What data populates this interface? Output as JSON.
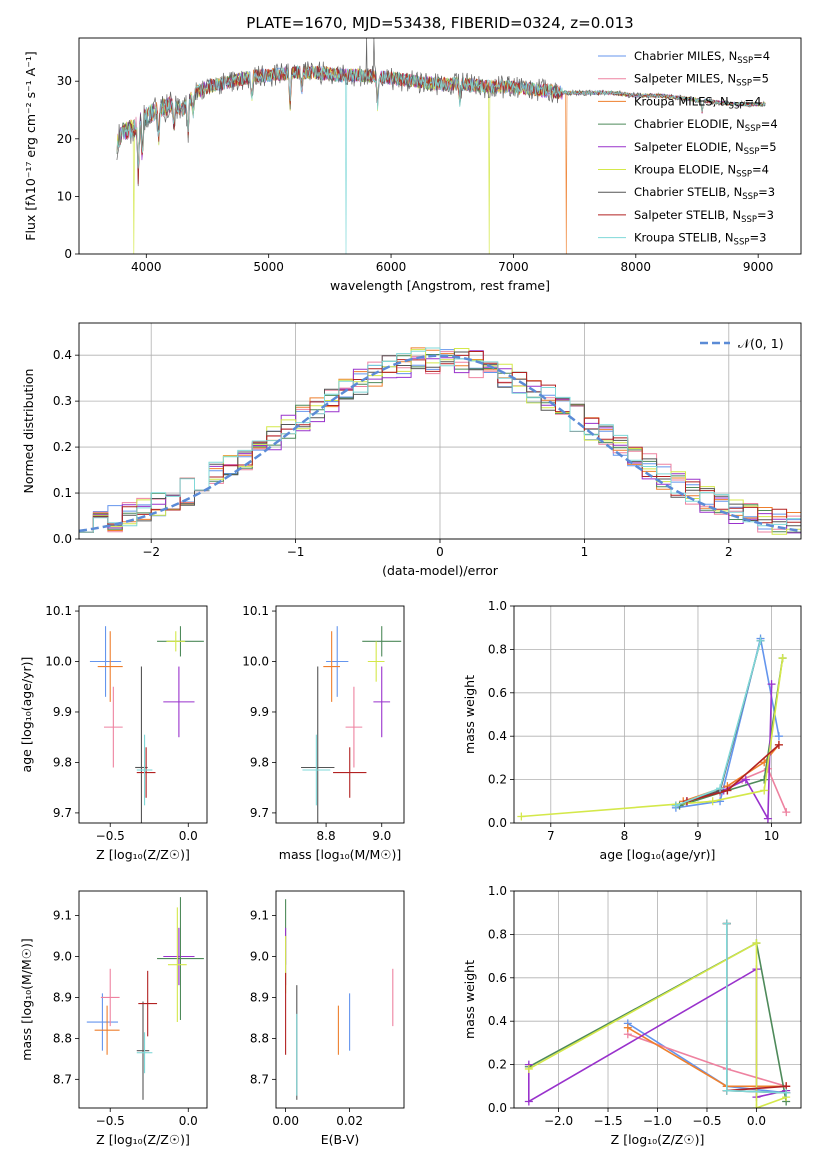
{
  "figure_title": "PLATE=1670, MJD=53438, FIBERID=0324, z=0.013",
  "colors": {
    "Chabrier MILES": "#6495ed",
    "Salpeter MILES": "#ee82a0",
    "Kroupa MILES": "#ee7f2d",
    "Chabrier ELODIE": "#4e8a5a",
    "Salpeter ELODIE": "#9932cc",
    "Kroupa ELODIE": "#d4e84a",
    "Chabrier STELIB": "#555555",
    "Salpeter STELIB": "#b22222",
    "Kroupa STELIB": "#7fd8d8",
    "gaussian": "#5b8bd6"
  },
  "chart_data": [
    {
      "id": "spectrum",
      "type": "line",
      "xlabel": "wavelength [Angstrom, rest frame]",
      "ylabel": "Flux [fλ10⁻¹⁷ erg cm⁻² s⁻¹ A⁻¹]",
      "xlim": [
        3450,
        9350
      ],
      "ylim": [
        0,
        37.5
      ],
      "xticks": [
        "4000",
        "5000",
        "6000",
        "7000",
        "8000",
        "9000"
      ],
      "yticks": [
        "0",
        "10",
        "20",
        "30"
      ],
      "legend_position": "top-right",
      "legend": [
        {
          "name": "Chabrier MILES",
          "label": "Chabrier MILES, N",
          "sub": "SSP",
          "tail": "=4"
        },
        {
          "name": "Salpeter MILES",
          "label": "Salpeter MILES, N",
          "sub": "SSP",
          "tail": "=5"
        },
        {
          "name": "Kroupa MILES",
          "label": "Kroupa MILES, N",
          "sub": "SSP",
          "tail": "=4"
        },
        {
          "name": "Chabrier ELODIE",
          "label": "Chabrier ELODIE, N",
          "sub": "SSP",
          "tail": "=4"
        },
        {
          "name": "Salpeter ELODIE",
          "label": "Salpeter ELODIE, N",
          "sub": "SSP",
          "tail": "=5"
        },
        {
          "name": "Kroupa ELODIE",
          "label": "Kroupa ELODIE, N",
          "sub": "SSP",
          "tail": "=4"
        },
        {
          "name": "Chabrier STELIB",
          "label": "Chabrier STELIB, N",
          "sub": "SSP",
          "tail": "=3"
        },
        {
          "name": "Salpeter STELIB",
          "label": "Salpeter STELIB, N",
          "sub": "SSP",
          "tail": "=3"
        },
        {
          "name": "Kroupa STELIB",
          "label": "Kroupa STELIB, N",
          "sub": "SSP",
          "tail": "=3"
        }
      ],
      "continuum": {
        "x": [
          3760,
          3800,
          3900,
          3950,
          4000,
          4100,
          4200,
          4300,
          4400,
          4500,
          4700,
          4900,
          5000,
          5200,
          5400,
          5600,
          5800,
          6000,
          6200,
          6400,
          6600,
          6800,
          7000,
          7200,
          7400,
          7600,
          7800,
          8000,
          8200,
          8400,
          8600,
          8800,
          9000,
          9060
        ],
        "y": [
          19,
          21,
          22,
          23,
          24,
          25,
          26,
          25,
          28,
          29,
          30,
          31,
          31,
          31.5,
          31.5,
          31,
          31,
          30.5,
          30,
          29.5,
          29.5,
          29,
          29,
          28.5,
          28,
          28,
          28,
          27.5,
          27.5,
          27,
          26.5,
          26,
          26,
          26
        ]
      },
      "dropouts": [
        {
          "model": "Kroupa ELODIE",
          "x": 3900
        },
        {
          "model": "Kroupa STELIB",
          "x": 5630
        },
        {
          "model": "Kroupa ELODIE",
          "x": 6800
        },
        {
          "model": "Kroupa MILES",
          "x": 7430
        }
      ]
    },
    {
      "id": "residuals",
      "type": "histogram",
      "xlabel": "(data-model)/error",
      "ylabel": "Normed distribution",
      "xlim": [
        -2.5,
        2.5
      ],
      "ylim": [
        0,
        0.47
      ],
      "xticks": [
        "−2",
        "−1",
        "0",
        "1",
        "2"
      ],
      "yticks": [
        "0.0",
        "0.1",
        "0.2",
        "0.3",
        "0.4"
      ],
      "grid": true,
      "legend": {
        "label": "𝒩(0, 1)",
        "position": "top-right"
      },
      "bin_width": 0.1
    },
    {
      "id": "z-age",
      "type": "errorbar",
      "xlabel": "Z [log₁₀(Z/Z☉)]",
      "ylabel": "age  [log₁₀(age/yr)]",
      "xlim": [
        -0.7,
        0.12
      ],
      "ylim": [
        9.68,
        10.11
      ],
      "xticks": [
        {
          "v": -0.5,
          "t": "−0.5"
        },
        {
          "v": 0.0,
          "t": "0.0"
        }
      ],
      "yticks": [
        {
          "v": 9.7,
          "t": "9.7"
        },
        {
          "v": 9.8,
          "t": "9.8"
        },
        {
          "v": 9.9,
          "t": "9.9"
        },
        {
          "v": 10.0,
          "t": "10.0"
        },
        {
          "v": 10.1,
          "t": "10.1"
        }
      ],
      "points": [
        {
          "model": "Chabrier MILES",
          "x": -0.53,
          "xerr": 0.1,
          "y": 10.0,
          "yerr": 0.07
        },
        {
          "model": "Kroupa MILES",
          "x": -0.5,
          "xerr": 0.08,
          "y": 9.99,
          "yerr": 0.07
        },
        {
          "model": "Salpeter MILES",
          "x": -0.48,
          "xerr": 0.06,
          "y": 9.87,
          "yerr": 0.08
        },
        {
          "model": "Chabrier STELIB",
          "x": -0.3,
          "xerr": 0.04,
          "y": 9.79,
          "yerr": 0.2
        },
        {
          "model": "Salpeter STELIB",
          "x": -0.27,
          "xerr": 0.06,
          "y": 9.78,
          "yerr": 0.05
        },
        {
          "model": "Kroupa STELIB",
          "x": -0.28,
          "xerr": 0.05,
          "y": 9.785,
          "yerr": 0.07
        },
        {
          "model": "Salpeter ELODIE",
          "x": -0.06,
          "xerr": 0.1,
          "y": 9.92,
          "yerr": 0.07
        },
        {
          "model": "Chabrier ELODIE",
          "x": -0.05,
          "xerr": 0.15,
          "y": 10.04,
          "yerr": 0.03
        },
        {
          "model": "Kroupa ELODIE",
          "x": -0.08,
          "xerr": 0.06,
          "y": 10.04,
          "yerr": 0.02
        }
      ]
    },
    {
      "id": "mass-age",
      "type": "errorbar",
      "xlabel": "mass [log₁₀(M/M☉)]",
      "ylabel": "",
      "xlim": [
        8.62,
        9.08
      ],
      "ylim": [
        9.68,
        10.11
      ],
      "xticks": [
        {
          "v": 8.8,
          "t": "8.8"
        },
        {
          "v": 9.0,
          "t": "9.0"
        }
      ],
      "yticks": [
        {
          "v": 9.7,
          "t": "9.7"
        },
        {
          "v": 9.8,
          "t": "9.8"
        },
        {
          "v": 9.9,
          "t": "9.9"
        },
        {
          "v": 10.0,
          "t": "10.0"
        },
        {
          "v": 10.1,
          "t": "10.1"
        }
      ],
      "points": [
        {
          "model": "Chabrier MILES",
          "x": 8.84,
          "xerr": 0.04,
          "y": 10.0,
          "yerr": 0.07
        },
        {
          "model": "Kroupa MILES",
          "x": 8.82,
          "xerr": 0.03,
          "y": 9.99,
          "yerr": 0.07
        },
        {
          "model": "Salpeter MILES",
          "x": 8.9,
          "xerr": 0.03,
          "y": 9.87,
          "yerr": 0.08
        },
        {
          "model": "Chabrier STELIB",
          "x": 8.77,
          "xerr": 0.06,
          "y": 9.79,
          "yerr": 0.2
        },
        {
          "model": "Salpeter STELIB",
          "x": 8.885,
          "xerr": 0.06,
          "y": 9.78,
          "yerr": 0.05
        },
        {
          "model": "Kroupa STELIB",
          "x": 8.765,
          "xerr": 0.05,
          "y": 9.785,
          "yerr": 0.07
        },
        {
          "model": "Salpeter ELODIE",
          "x": 9.0,
          "xerr": 0.03,
          "y": 9.92,
          "yerr": 0.07
        },
        {
          "model": "Chabrier ELODIE",
          "x": 9.0,
          "xerr": 0.07,
          "y": 10.04,
          "yerr": 0.03
        },
        {
          "model": "Kroupa ELODIE",
          "x": 8.98,
          "xerr": 0.03,
          "y": 10.0,
          "yerr": 0.04
        }
      ]
    },
    {
      "id": "age-weight",
      "type": "line",
      "xlabel": "age  [log₁₀(age/yr)]",
      "ylabel": "mass weight",
      "xlim": [
        6.5,
        10.4
      ],
      "ylim": [
        0,
        1.0
      ],
      "xticks": [
        {
          "v": 7,
          "t": "7"
        },
        {
          "v": 8,
          "t": "8"
        },
        {
          "v": 9,
          "t": "9"
        },
        {
          "v": 10,
          "t": "10"
        }
      ],
      "yticks": [
        {
          "v": 0,
          "t": "0.0"
        },
        {
          "v": 0.2,
          "t": "0.2"
        },
        {
          "v": 0.4,
          "t": "0.4"
        },
        {
          "v": 0.6,
          "t": "0.6"
        },
        {
          "v": 0.8,
          "t": "0.8"
        },
        {
          "v": 1.0,
          "t": "1.0"
        }
      ],
      "grid": true,
      "series": [
        {
          "model": "Chabrier MILES",
          "x": [
            8.7,
            9.3,
            9.85,
            10.1
          ],
          "y": [
            0.07,
            0.1,
            0.85,
            0.4
          ]
        },
        {
          "model": "Salpeter MILES",
          "x": [
            8.85,
            9.3,
            9.6,
            9.95,
            10.2
          ],
          "y": [
            0.1,
            0.14,
            0.2,
            0.25,
            0.05
          ]
        },
        {
          "model": "Kroupa MILES",
          "x": [
            8.8,
            9.4,
            9.9,
            10.1
          ],
          "y": [
            0.1,
            0.17,
            0.28,
            0.36
          ]
        },
        {
          "model": "Chabrier ELODIE",
          "x": [
            8.75,
            9.4,
            9.9,
            10.15
          ],
          "y": [
            0.08,
            0.15,
            0.2,
            0.76
          ]
        },
        {
          "model": "Salpeter ELODIE",
          "x": [
            8.85,
            9.35,
            9.65,
            9.95,
            10.0
          ],
          "y": [
            0.1,
            0.15,
            0.2,
            0.02,
            0.64
          ]
        },
        {
          "model": "Kroupa ELODIE",
          "x": [
            6.6,
            9.2,
            9.9,
            10.15
          ],
          "y": [
            0.03,
            0.1,
            0.15,
            0.76
          ]
        },
        {
          "model": "Chabrier STELIB",
          "x": [
            8.7,
            9.3,
            9.85
          ],
          "y": [
            0.08,
            0.15,
            0.84
          ]
        },
        {
          "model": "Salpeter STELIB",
          "x": [
            8.85,
            9.4,
            10.1
          ],
          "y": [
            0.1,
            0.15,
            0.36
          ]
        },
        {
          "model": "Kroupa STELIB",
          "x": [
            8.7,
            9.3,
            9.85
          ],
          "y": [
            0.08,
            0.16,
            0.84
          ]
        }
      ]
    },
    {
      "id": "z-mass",
      "type": "errorbar",
      "xlabel": "Z [log₁₀(Z/Z☉)]",
      "ylabel": "mass [log₁₀(M/M☉)]",
      "xlim": [
        -0.7,
        0.12
      ],
      "ylim": [
        8.63,
        9.16
      ],
      "xticks": [
        {
          "v": -0.5,
          "t": "−0.5"
        },
        {
          "v": 0.0,
          "t": "0.0"
        }
      ],
      "yticks": [
        {
          "v": 8.7,
          "t": "8.7"
        },
        {
          "v": 8.8,
          "t": "8.8"
        },
        {
          "v": 8.9,
          "t": "8.9"
        },
        {
          "v": 9.0,
          "t": "9.0"
        },
        {
          "v": 9.1,
          "t": "9.1"
        }
      ],
      "points": [
        {
          "model": "Chabrier MILES",
          "x": -0.55,
          "xerr": 0.1,
          "y": 8.84,
          "yerr": 0.07
        },
        {
          "model": "Kroupa MILES",
          "x": -0.52,
          "xerr": 0.08,
          "y": 8.82,
          "yerr": 0.06
        },
        {
          "model": "Salpeter MILES",
          "x": -0.5,
          "xerr": 0.06,
          "y": 8.9,
          "yerr": 0.07
        },
        {
          "model": "Chabrier STELIB",
          "x": -0.29,
          "xerr": 0.04,
          "y": 8.77,
          "yerr": 0.12
        },
        {
          "model": "Salpeter STELIB",
          "x": -0.26,
          "xerr": 0.06,
          "y": 8.885,
          "yerr": 0.08
        },
        {
          "model": "Kroupa STELIB",
          "x": -0.28,
          "xerr": 0.05,
          "y": 8.765,
          "yerr": 0.05
        },
        {
          "model": "Salpeter ELODIE",
          "x": -0.06,
          "xerr": 0.1,
          "y": 9.0,
          "yerr": 0.07
        },
        {
          "model": "Chabrier ELODIE",
          "x": -0.05,
          "xerr": 0.15,
          "y": 8.995,
          "yerr": 0.15
        },
        {
          "model": "Kroupa ELODIE",
          "x": -0.07,
          "xerr": 0.06,
          "y": 8.98,
          "yerr": 0.14
        }
      ]
    },
    {
      "id": "ebv-mass",
      "type": "errorbar",
      "xlabel": "E(B-V)",
      "ylabel": "",
      "xlim": [
        -0.003,
        0.037
      ],
      "ylim": [
        8.63,
        9.16
      ],
      "xticks": [
        {
          "v": 0.0,
          "t": "0.00"
        },
        {
          "v": 0.02,
          "t": "0.02"
        }
      ],
      "yticks": [
        {
          "v": 8.7,
          "t": "8.7"
        },
        {
          "v": 8.8,
          "t": "8.8"
        },
        {
          "v": 8.9,
          "t": "8.9"
        },
        {
          "v": 9.0,
          "t": "9.0"
        },
        {
          "v": 9.1,
          "t": "9.1"
        }
      ],
      "points": [
        {
          "model": "Chabrier ELODIE",
          "x": 0.0,
          "xerr": 0,
          "y": 9.06,
          "yerr": 0.08
        },
        {
          "model": "Salpeter ELODIE",
          "x": 0.0,
          "xerr": 0,
          "y": 9.0,
          "yerr": 0.07
        },
        {
          "model": "Kroupa ELODIE",
          "x": 0.0,
          "xerr": 0,
          "y": 8.98,
          "yerr": 0.07
        },
        {
          "model": "Salpeter STELIB",
          "x": 0.0,
          "xerr": 0,
          "y": 8.86,
          "yerr": 0.1
        },
        {
          "model": "Chabrier STELIB",
          "x": 0.0035,
          "xerr": 0,
          "y": 8.79,
          "yerr": 0.14
        },
        {
          "model": "Kroupa STELIB",
          "x": 0.0035,
          "xerr": 0,
          "y": 8.76,
          "yerr": 0.1
        },
        {
          "model": "Kroupa MILES",
          "x": 0.0165,
          "xerr": 0,
          "y": 8.82,
          "yerr": 0.06
        },
        {
          "model": "Chabrier MILES",
          "x": 0.02,
          "xerr": 0,
          "y": 8.84,
          "yerr": 0.07
        },
        {
          "model": "Salpeter MILES",
          "x": 0.0335,
          "xerr": 0,
          "y": 8.9,
          "yerr": 0.07
        }
      ]
    },
    {
      "id": "z-weight",
      "type": "line",
      "xlabel": "Z [log₁₀(Z/Z☉)]",
      "ylabel": "mass weight",
      "xlim": [
        -2.45,
        0.45
      ],
      "ylim": [
        0,
        1.0
      ],
      "xticks": [
        {
          "v": -2.0,
          "t": "−2.0"
        },
        {
          "v": -1.5,
          "t": "−1.5"
        },
        {
          "v": -1.0,
          "t": "−1.0"
        },
        {
          "v": -0.5,
          "t": "−0.5"
        },
        {
          "v": 0.0,
          "t": "0.0"
        }
      ],
      "yticks": [
        {
          "v": 0,
          "t": "0.0"
        },
        {
          "v": 0.2,
          "t": "0.2"
        },
        {
          "v": 0.4,
          "t": "0.4"
        },
        {
          "v": 0.6,
          "t": "0.6"
        },
        {
          "v": 0.8,
          "t": "0.8"
        },
        {
          "v": 1.0,
          "t": "1.0"
        }
      ],
      "grid": true,
      "series": [
        {
          "model": "Chabrier MILES",
          "x": [
            -1.3,
            -0.3,
            0.3
          ],
          "y": [
            0.39,
            0.1,
            0.07
          ]
        },
        {
          "model": "Salpeter MILES",
          "x": [
            -1.3,
            -0.3,
            0.3
          ],
          "y": [
            0.34,
            0.18,
            0.1
          ]
        },
        {
          "model": "Kroupa MILES",
          "x": [
            -1.3,
            -0.3,
            0.3
          ],
          "y": [
            0.37,
            0.1,
            0.1
          ]
        },
        {
          "model": "Chabrier ELODIE",
          "x": [
            -2.3,
            0.0,
            0.3
          ],
          "y": [
            0.19,
            0.76,
            0.03
          ]
        },
        {
          "model": "Salpeter ELODIE",
          "x": [
            -2.3,
            -2.3,
            0.0,
            0.0,
            0.3
          ],
          "y": [
            0.2,
            0.03,
            0.64,
            0.05,
            0.08
          ]
        },
        {
          "model": "Kroupa ELODIE",
          "x": [
            -2.3,
            0.0,
            0.0,
            0.3
          ],
          "y": [
            0.18,
            0.76,
            0.0,
            0.05
          ]
        },
        {
          "model": "Chabrier STELIB",
          "x": [
            -0.3,
            -0.3,
            0.3
          ],
          "y": [
            0.85,
            0.08,
            0.07
          ]
        },
        {
          "model": "Salpeter STELIB",
          "x": [
            -0.3,
            -0.3,
            0.3
          ],
          "y": [
            0.85,
            0.08,
            0.1
          ]
        },
        {
          "model": "Kroupa STELIB",
          "x": [
            -0.3,
            -0.3,
            0.3
          ],
          "y": [
            0.85,
            0.08,
            0.07
          ]
        }
      ]
    }
  ]
}
